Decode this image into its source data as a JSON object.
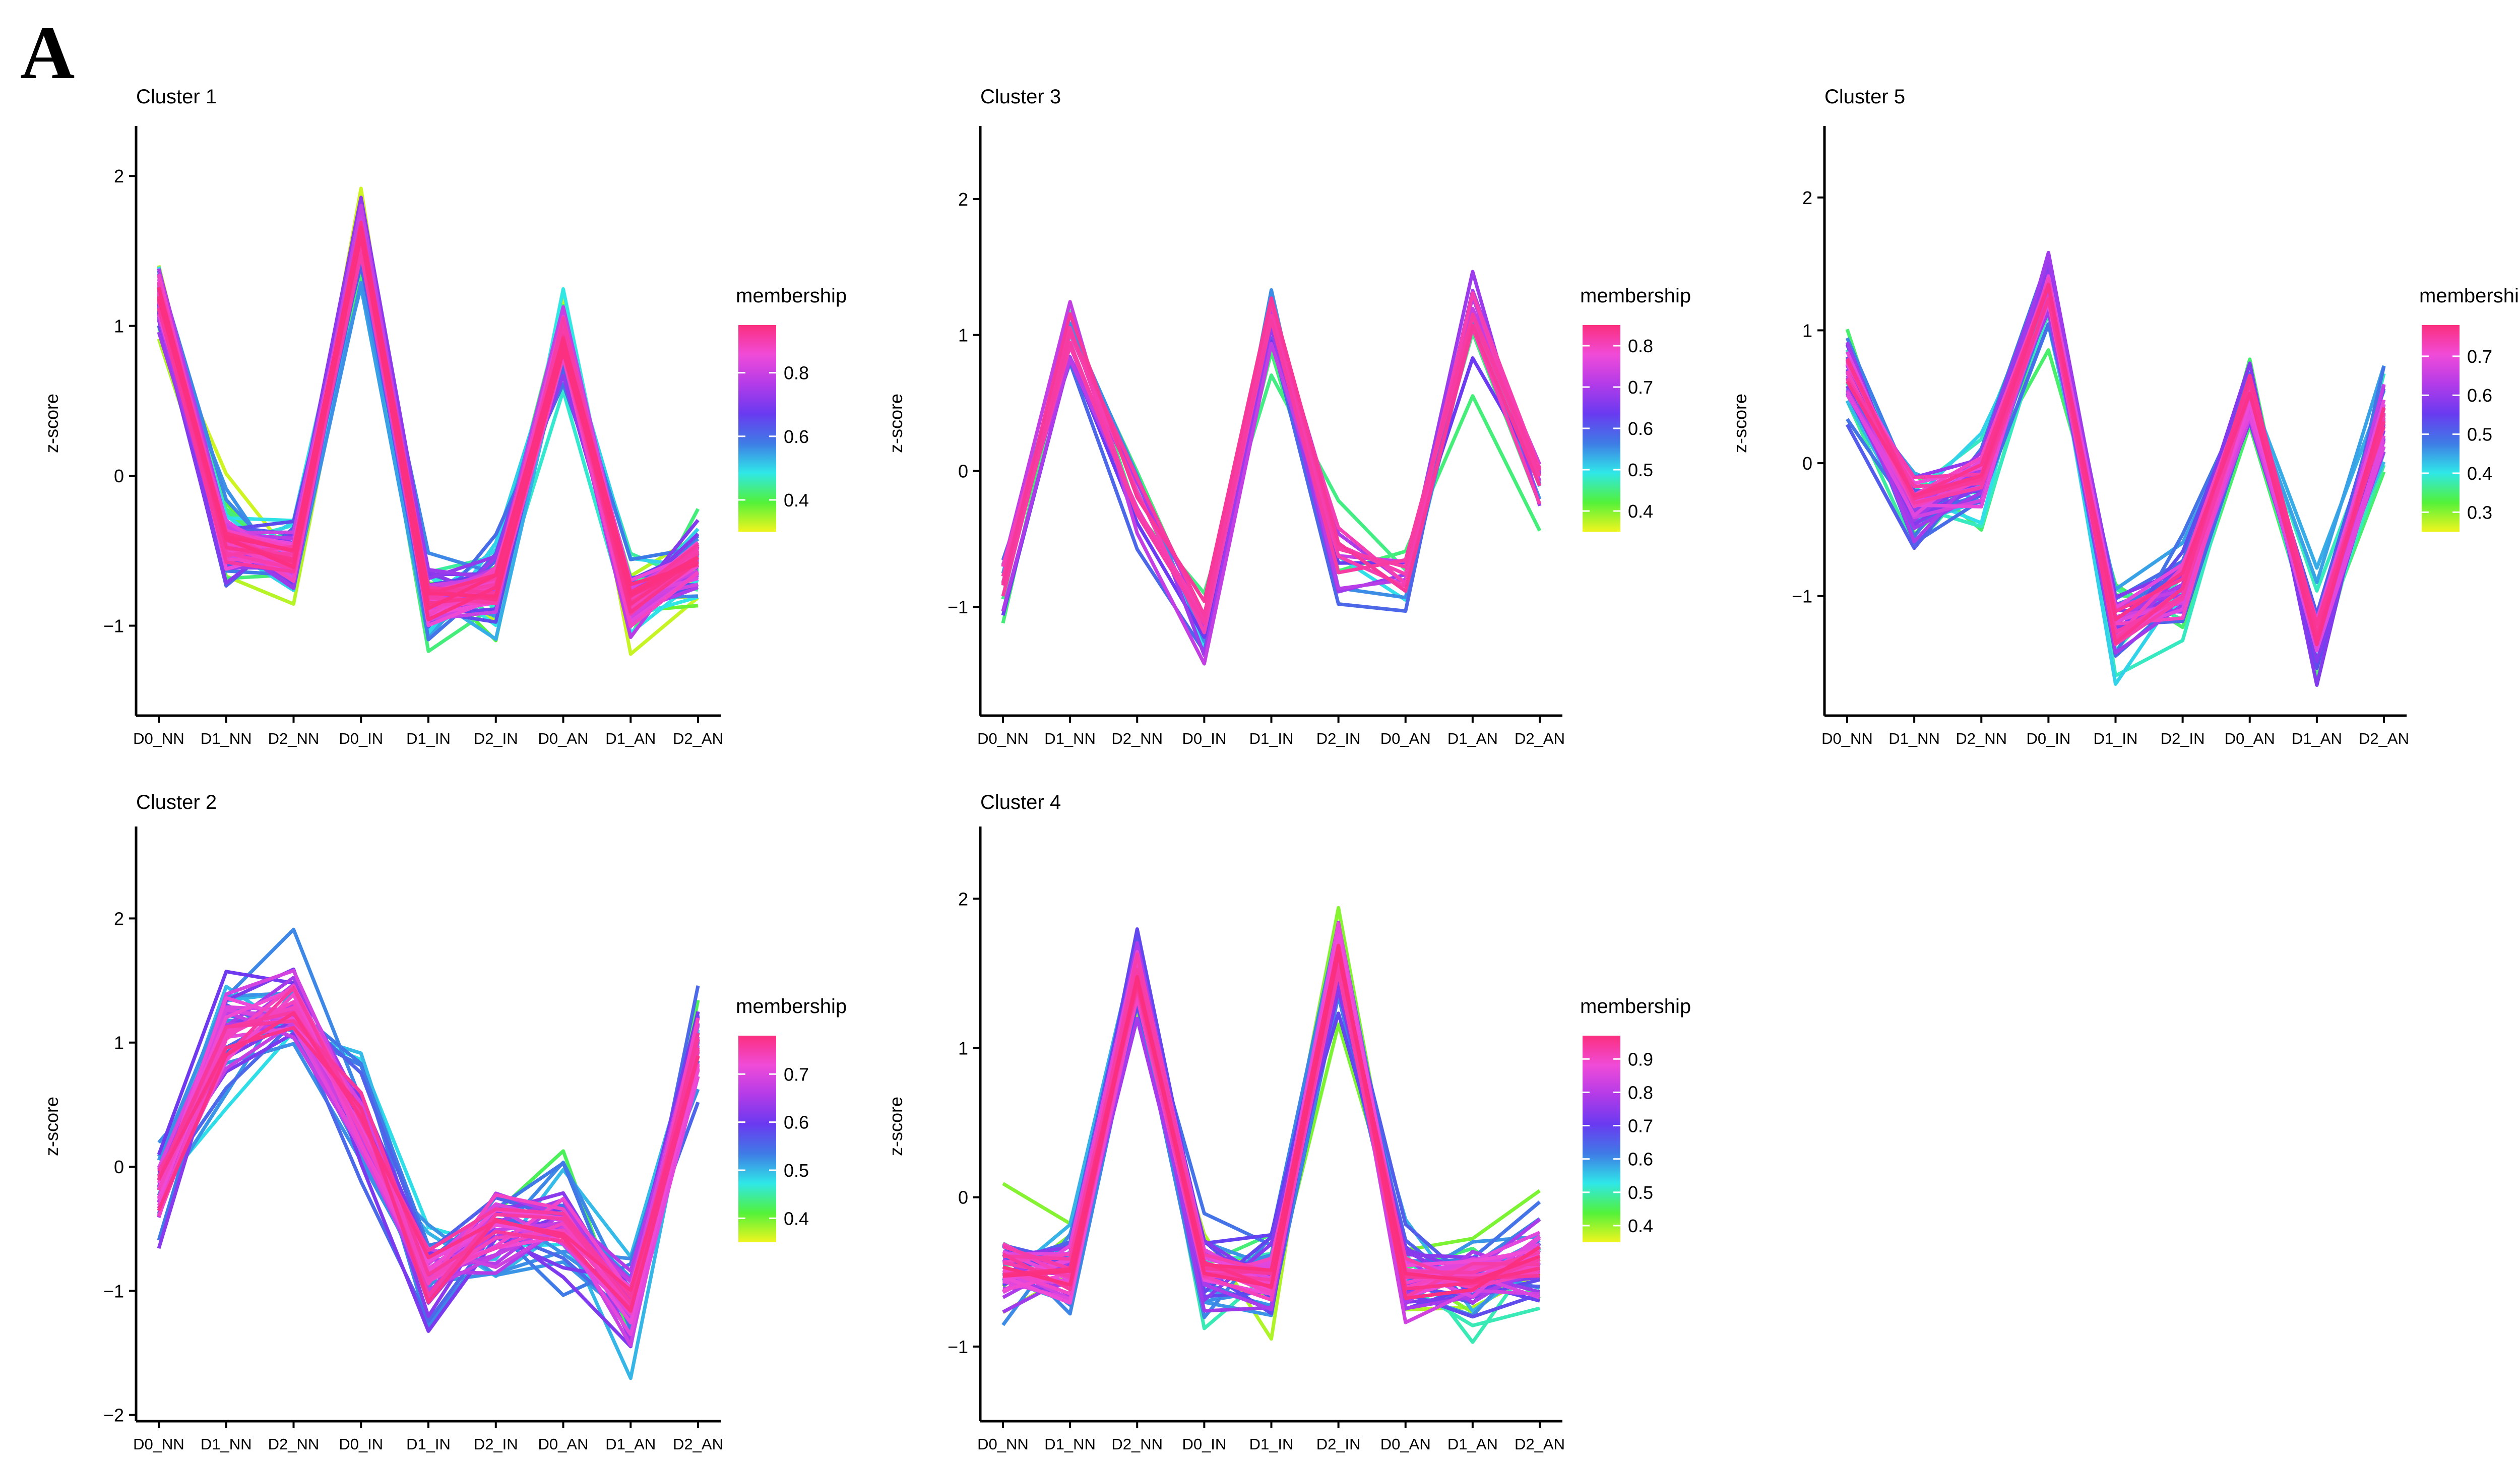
{
  "figure": {
    "panel_letter": "A",
    "legend_title": "membership",
    "colors": [
      "#f0f51e",
      "#52f23a",
      "#2fe7e8",
      "#3f7be6",
      "#6a3af0",
      "#b33be8",
      "#f04bd8",
      "#fb2f7e"
    ]
  },
  "chart_data": [
    {
      "type": "line",
      "title": "Cluster 1",
      "ylabel": "z-score",
      "xlabel": "",
      "categories": [
        "D0_NN",
        "D1_NN",
        "D2_NN",
        "D0_IN",
        "D1_IN",
        "D2_IN",
        "D0_AN",
        "D1_AN",
        "D2_AN"
      ],
      "ylim": [
        -1.6,
        2.3
      ],
      "yticks": [
        -1,
        0,
        1,
        2
      ],
      "legend": {
        "title": "membership",
        "min": 0.3,
        "max": 0.95,
        "ticks": [
          0.4,
          0.6,
          0.8
        ]
      },
      "series_count": 90,
      "mean_profile": [
        1.2,
        -0.45,
        -0.55,
        1.6,
        -0.85,
        -0.75,
        0.9,
        -0.85,
        -0.55
      ],
      "spread": 0.25
    },
    {
      "type": "line",
      "title": "Cluster 3",
      "ylabel": "z-score",
      "xlabel": "",
      "categories": [
        "D0_NN",
        "D1_NN",
        "D2_NN",
        "D0_IN",
        "D1_IN",
        "D2_IN",
        "D0_AN",
        "D1_AN",
        "D2_AN"
      ],
      "ylim": [
        -1.8,
        2.5
      ],
      "yticks": [
        -1,
        0,
        1,
        2
      ],
      "legend": {
        "title": "membership",
        "min": 0.35,
        "max": 0.85,
        "ticks": [
          0.4,
          0.5,
          0.6,
          0.7,
          0.8
        ]
      },
      "series_count": 16,
      "mean_profile": [
        -0.85,
        1.0,
        -0.2,
        -1.1,
        1.1,
        -0.6,
        -0.8,
        1.2,
        -0.15
      ],
      "spread": 0.35
    },
    {
      "type": "line",
      "title": "Cluster 5",
      "ylabel": "z-score",
      "xlabel": "",
      "categories": [
        "D0_NN",
        "D1_NN",
        "D2_NN",
        "D0_IN",
        "D1_IN",
        "D2_IN",
        "D0_AN",
        "D1_AN",
        "D2_AN"
      ],
      "ylim": [
        -1.9,
        2.5
      ],
      "yticks": [
        -1,
        0,
        1,
        2
      ],
      "legend": {
        "title": "membership",
        "min": 0.25,
        "max": 0.78,
        "ticks": [
          0.3,
          0.4,
          0.5,
          0.6,
          0.7
        ]
      },
      "series_count": 45,
      "mean_profile": [
        0.7,
        -0.3,
        -0.1,
        1.3,
        -1.25,
        -0.95,
        0.55,
        -1.3,
        0.35
      ],
      "spread": 0.3
    },
    {
      "type": "line",
      "title": "Cluster 2",
      "ylabel": "z-score",
      "xlabel": "",
      "categories": [
        "D0_NN",
        "D1_NN",
        "D2_NN",
        "D0_IN",
        "D1_IN",
        "D2_IN",
        "D0_AN",
        "D1_AN",
        "D2_AN"
      ],
      "ylim": [
        -2.05,
        2.7
      ],
      "yticks": [
        -2,
        -1,
        0,
        1,
        2
      ],
      "legend": {
        "title": "membership",
        "min": 0.35,
        "max": 0.78,
        "ticks": [
          0.4,
          0.5,
          0.6,
          0.7
        ]
      },
      "series_count": 45,
      "mean_profile": [
        -0.2,
        1.1,
        1.3,
        0.3,
        -0.85,
        -0.5,
        -0.45,
        -1.1,
        1.0
      ],
      "spread": 0.45
    },
    {
      "type": "line",
      "title": "Cluster 4",
      "ylabel": "z-score",
      "xlabel": "",
      "categories": [
        "D0_NN",
        "D1_NN",
        "D2_NN",
        "D0_IN",
        "D1_IN",
        "D2_IN",
        "D0_AN",
        "D1_AN",
        "D2_AN"
      ],
      "ylim": [
        -1.5,
        2.45
      ],
      "yticks": [
        -1,
        0,
        1,
        2
      ],
      "legend": {
        "title": "membership",
        "min": 0.35,
        "max": 0.97,
        "ticks": [
          0.4,
          0.5,
          0.6,
          0.7,
          0.8,
          0.9
        ]
      },
      "series_count": 60,
      "mean_profile": [
        -0.5,
        -0.5,
        1.5,
        -0.5,
        -0.55,
        1.6,
        -0.55,
        -0.55,
        -0.45
      ],
      "spread": 0.3
    }
  ]
}
